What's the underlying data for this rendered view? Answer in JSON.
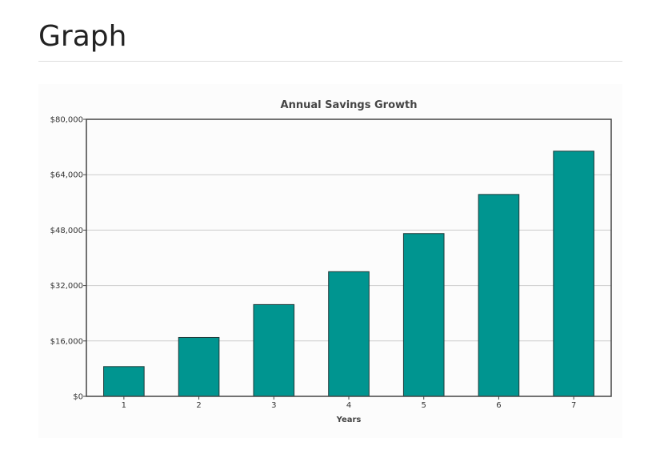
{
  "page": {
    "title": "Graph"
  },
  "chart_data": {
    "type": "bar",
    "title": "Annual Savings Growth",
    "xlabel": "Years",
    "ylabel": "",
    "categories": [
      "1",
      "2",
      "3",
      "4",
      "5",
      "6",
      "7"
    ],
    "values": [
      8600,
      17000,
      26500,
      36000,
      47000,
      58300,
      70800
    ],
    "ylim": [
      0,
      80000
    ],
    "yticks": [
      0,
      16000,
      32000,
      48000,
      64000,
      80000
    ],
    "ytick_labels": [
      "$0",
      "$16,000",
      "$32,000",
      "$48,000",
      "$64,000",
      "$80,000"
    ],
    "bar_color": "#009590",
    "grid": true,
    "legend": "none"
  }
}
